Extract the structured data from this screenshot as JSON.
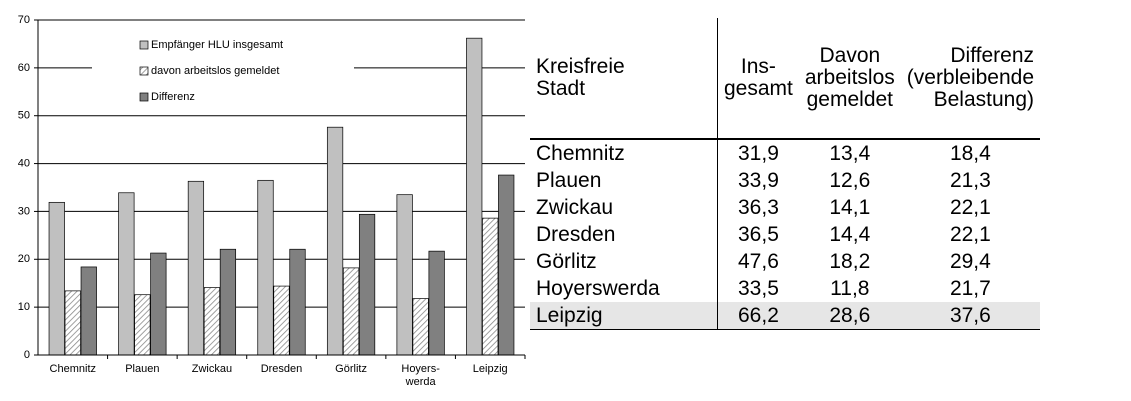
{
  "chart_data": {
    "type": "bar",
    "categories": [
      "Chemnitz",
      "Plauen",
      "Zwickau",
      "Dresden",
      "Görlitz",
      "Hoyers-\nwerda",
      "Leipzig"
    ],
    "series": [
      {
        "name": "Empfänger HLU insgesamt",
        "color": "#c0c0c0",
        "values": [
          31.9,
          33.9,
          36.3,
          36.5,
          47.6,
          33.5,
          66.2
        ]
      },
      {
        "name": "davon arbeitslos gemeldet",
        "color": "hatch",
        "values": [
          13.4,
          12.6,
          14.1,
          14.4,
          18.2,
          11.8,
          28.6
        ]
      },
      {
        "name": "Differenz",
        "color": "#808080",
        "values": [
          18.4,
          21.3,
          22.1,
          22.1,
          29.4,
          21.7,
          37.6
        ]
      }
    ],
    "ylim": [
      0,
      70
    ],
    "yticks": [
      0,
      10,
      20,
      30,
      40,
      50,
      60,
      70
    ],
    "grid": true,
    "legend": "top"
  },
  "table": {
    "header": [
      "Kreisfreie\nStadt",
      "Ins-\ngesamt",
      "Davon\narbeitslos\ngemeldet",
      "Differenz\n(verbleibende\nBelastung)"
    ],
    "rows": [
      [
        "Chemnitz",
        "31,9",
        "13,4",
        "18,4"
      ],
      [
        "Plauen",
        "33,9",
        "12,6",
        "21,3"
      ],
      [
        "Zwickau",
        "36,3",
        "14,1",
        "22,1"
      ],
      [
        "Dresden",
        "36,5",
        "14,4",
        "22,1"
      ],
      [
        "Görlitz",
        "47,6",
        "18,2",
        "29,4"
      ],
      [
        "Hoyerswerda",
        "33,5",
        "11,8",
        "21,7"
      ],
      [
        "Leipzig",
        "66,2",
        "28,6",
        "37,6"
      ]
    ]
  }
}
